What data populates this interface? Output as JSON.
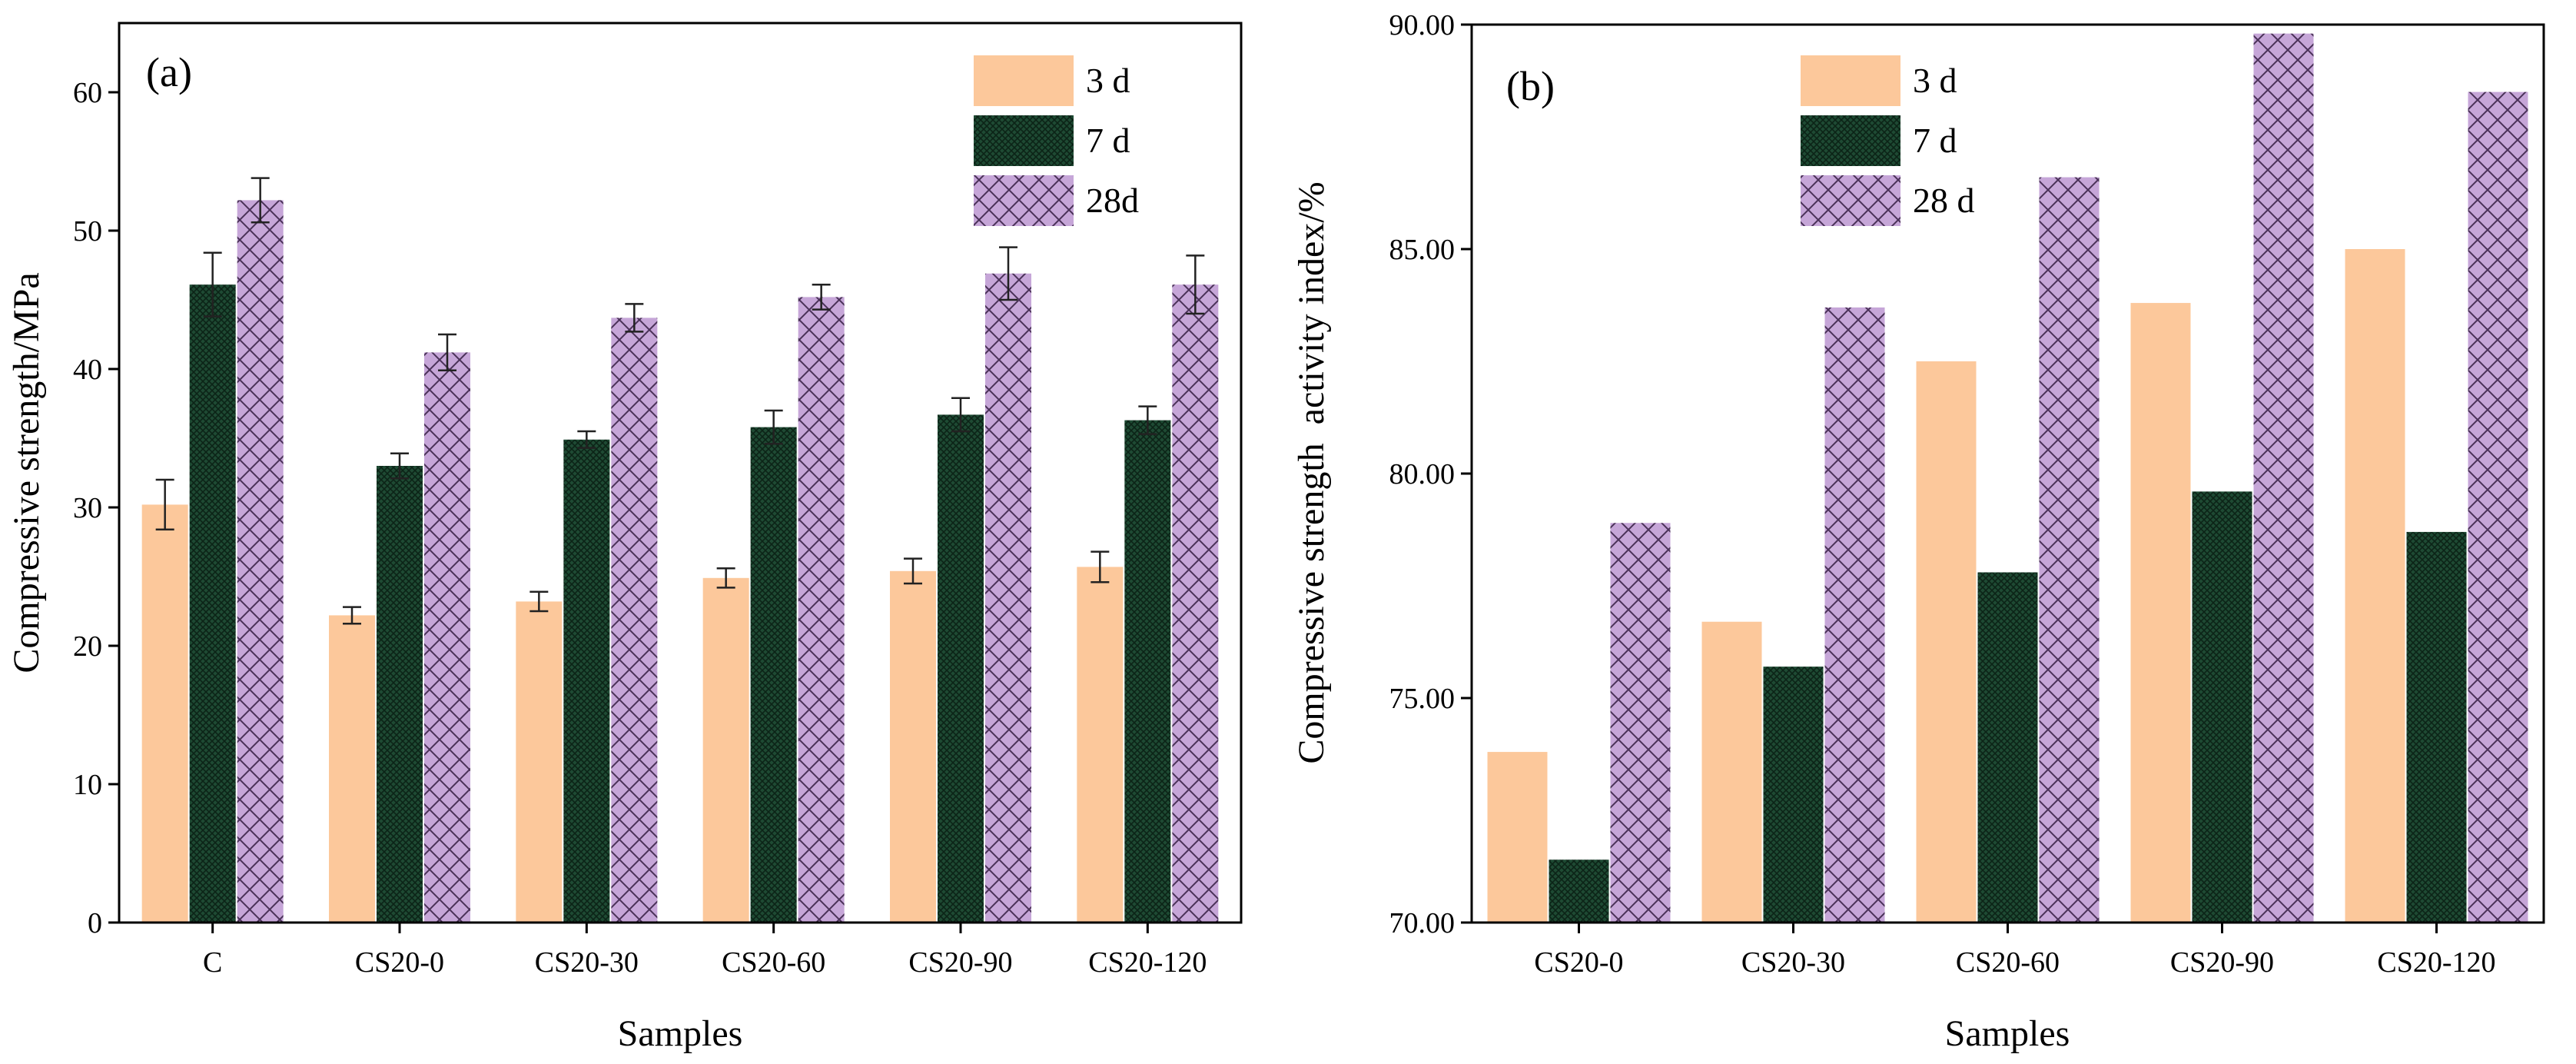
{
  "colors": {
    "d3": "#fcc89b",
    "d7": "#1e4a33",
    "d28": "#c6a6d8",
    "hatch7": "#0c2417",
    "hatch28": "#4a3158"
  },
  "chart_data": [
    {
      "type": "bar",
      "panel_label": "(a)",
      "xlabel": "Samples",
      "ylabel": "Compressive strength/MPa",
      "ylim": [
        0,
        65
      ],
      "yticks": [
        0,
        10,
        20,
        30,
        40,
        50,
        60
      ],
      "ytick_labels": [
        "0",
        "10",
        "20",
        "30",
        "40",
        "50",
        "60"
      ],
      "categories": [
        "C",
        "CS20-0",
        "CS20-30",
        "CS20-60",
        "CS20-90",
        "CS20-120"
      ],
      "series": [
        {
          "name": "3 d",
          "values": [
            30.2,
            22.2,
            23.2,
            24.9,
            25.4,
            25.7
          ],
          "errors": [
            1.8,
            0.6,
            0.7,
            0.7,
            0.9,
            1.1
          ]
        },
        {
          "name": "7 d",
          "values": [
            46.1,
            33.0,
            34.9,
            35.8,
            36.7,
            36.3
          ],
          "errors": [
            2.3,
            0.9,
            0.6,
            1.2,
            1.2,
            1.0
          ]
        },
        {
          "name": "28d",
          "values": [
            52.2,
            41.2,
            43.7,
            45.2,
            46.9,
            46.1
          ],
          "errors": [
            1.6,
            1.3,
            1.0,
            0.9,
            1.9,
            2.1
          ]
        }
      ],
      "legend": [
        "3 d",
        "7 d",
        "28d"
      ]
    },
    {
      "type": "bar",
      "panel_label": "(b)",
      "xlabel": "Samples",
      "ylabel": "Compressive strength  activity index/%",
      "ylim": [
        70,
        90
      ],
      "yticks": [
        70,
        75,
        80,
        85,
        90
      ],
      "ytick_labels": [
        "70.00",
        "75.00",
        "80.00",
        "85.00",
        "90.00"
      ],
      "categories": [
        "CS20-0",
        "CS20-30",
        "CS20-60",
        "CS20-90",
        "CS20-120"
      ],
      "series": [
        {
          "name": "3 d",
          "values": [
            73.8,
            76.7,
            82.5,
            83.8,
            85.0
          ]
        },
        {
          "name": "7 d",
          "values": [
            71.4,
            75.7,
            77.8,
            79.6,
            78.7
          ]
        },
        {
          "name": "28 d",
          "values": [
            78.9,
            83.7,
            86.6,
            89.8,
            88.5
          ]
        }
      ],
      "legend": [
        "3 d",
        "7 d",
        "28 d"
      ]
    }
  ]
}
